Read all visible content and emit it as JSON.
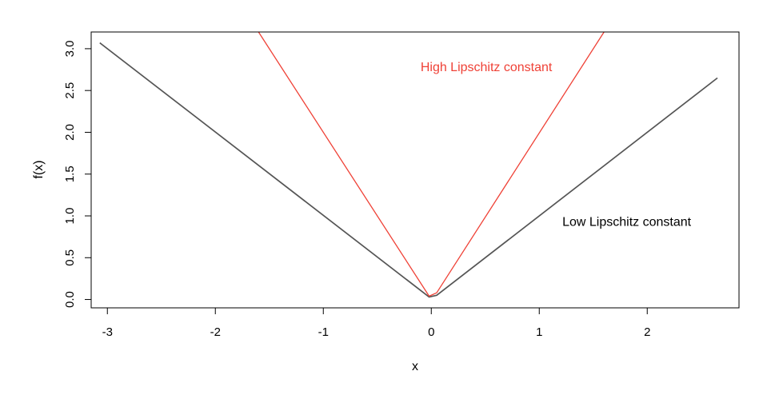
{
  "chart_data": {
    "type": "line",
    "title": "",
    "xlabel": "x",
    "ylabel": "f(x)",
    "xlim": [
      -3.15,
      2.85
    ],
    "ylim": [
      -0.1,
      3.2
    ],
    "x_ticks": [
      -3,
      -2,
      -1,
      0,
      1,
      2
    ],
    "y_ticks": [
      0.0,
      0.5,
      1.0,
      1.5,
      2.0,
      2.5,
      3.0
    ],
    "x_tick_labels": [
      "-3",
      "-2",
      "-1",
      "0",
      "1",
      "2"
    ],
    "y_tick_labels": [
      "0.0",
      "0.5",
      "1.0",
      "1.5",
      "2.0",
      "2.5",
      "3.0"
    ],
    "grid": false,
    "series": [
      {
        "color": "#555555",
        "x": [
          -3.07,
          -0.02,
          0.05,
          2.65
        ],
        "y": [
          3.07,
          0.03,
          0.05,
          2.65
        ]
      },
      {
        "color": "#ef4136",
        "x": [
          -1.6,
          -0.02,
          0.05,
          1.6
        ],
        "y": [
          3.2,
          0.04,
          0.08,
          3.2
        ]
      }
    ],
    "annotations": [
      {
        "text": "High Lipschitz constant",
        "x": 0.51,
        "y": 2.77,
        "color": "#ef4136"
      },
      {
        "text": "Low Lipschitz constant",
        "x": 1.81,
        "y": 0.92,
        "color": "#000000"
      }
    ]
  }
}
